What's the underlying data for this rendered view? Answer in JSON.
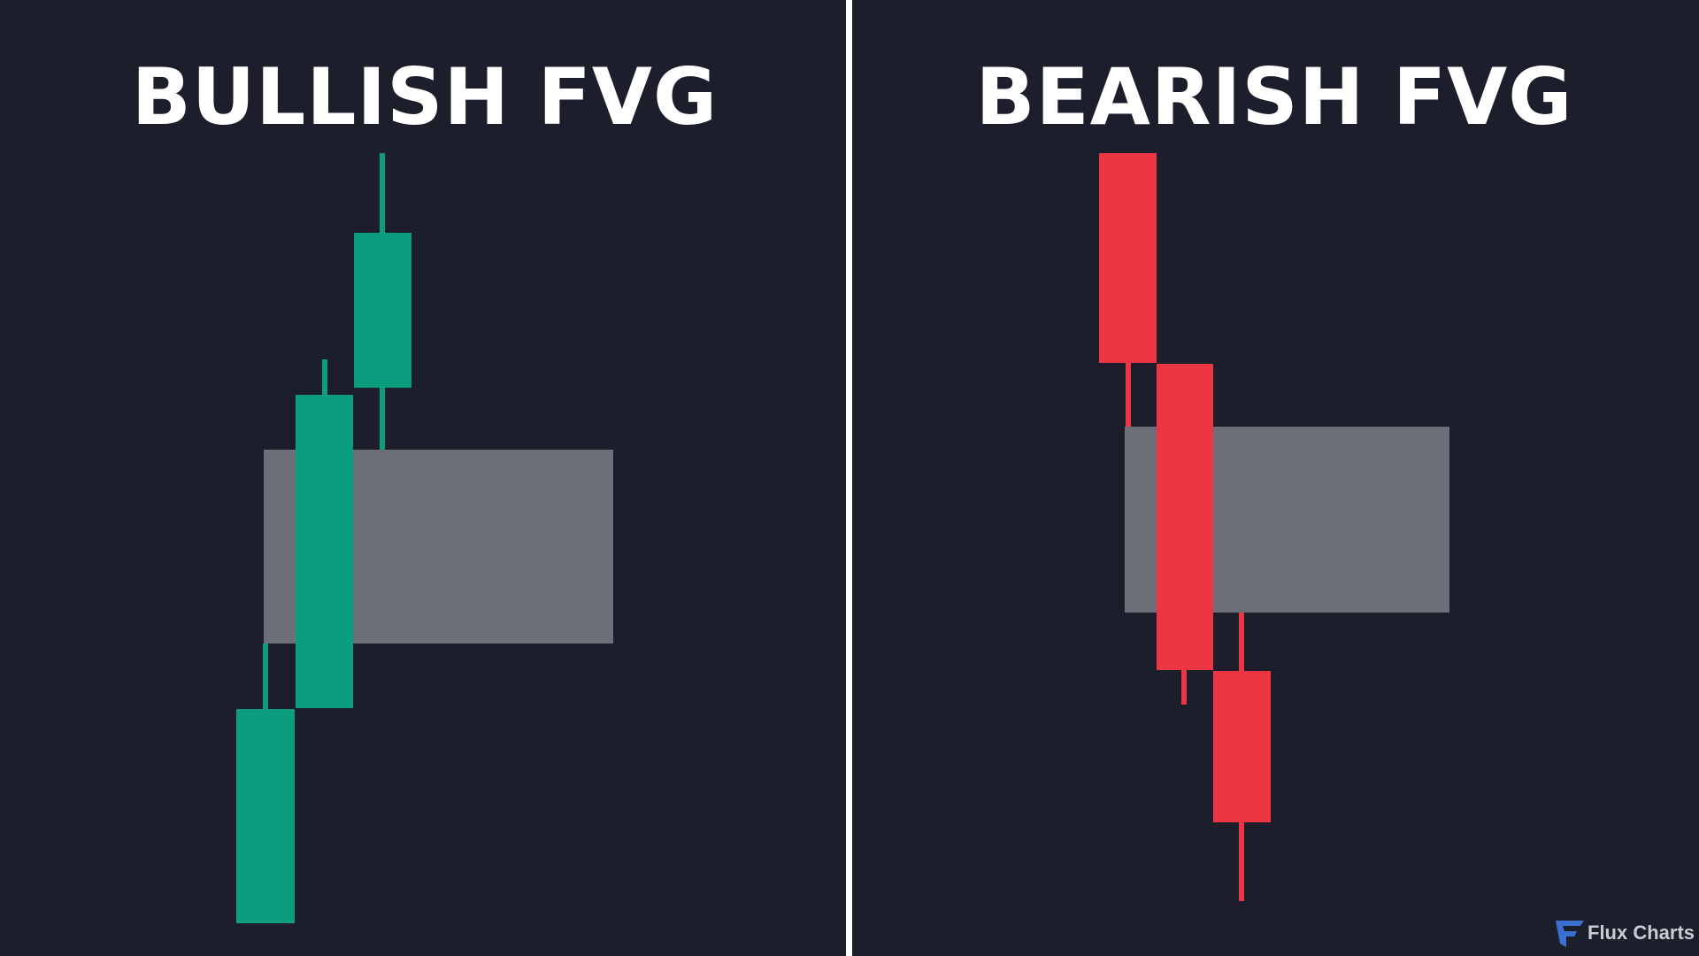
{
  "panels": [
    {
      "title": "BULLISH FVG"
    },
    {
      "title": "BEARISH FVG"
    }
  ],
  "logo": {
    "text": "Flux Charts"
  }
}
